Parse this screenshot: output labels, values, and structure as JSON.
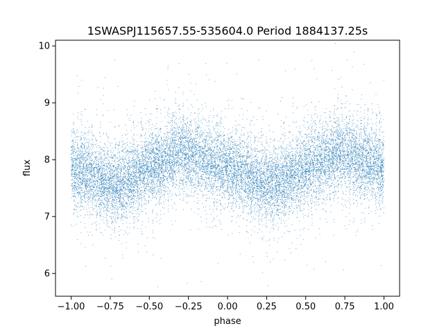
{
  "chart_data": {
    "type": "scatter",
    "title": "1SWASPJ115657.55-535604.0 Period 1884137.25s",
    "xlabel": "phase",
    "ylabel": "flux",
    "xlim": [
      -1.1,
      1.1
    ],
    "ylim": [
      5.6,
      10.1
    ],
    "xticks": [
      -1.0,
      -0.75,
      -0.5,
      -0.25,
      0.0,
      0.25,
      0.5,
      0.75,
      1.0
    ],
    "xtick_labels": [
      "−1.00",
      "−0.75",
      "−0.50",
      "−0.25",
      "0.00",
      "0.25",
      "0.50",
      "0.75",
      "1.00"
    ],
    "yticks": [
      6,
      7,
      8,
      9,
      10
    ],
    "ytick_labels": [
      "6",
      "7",
      "8",
      "9",
      "10"
    ],
    "grid": false,
    "marker_color": "#1f77b4",
    "phase_range": [
      -1.0,
      1.0
    ],
    "n_points": 16000,
    "mean_curve": [
      {
        "phase": -1.0,
        "flux": 7.85
      },
      {
        "phase": -0.9,
        "flux": 7.8
      },
      {
        "phase": -0.8,
        "flux": 7.6
      },
      {
        "phase": -0.7,
        "flux": 7.55
      },
      {
        "phase": -0.6,
        "flux": 7.7
      },
      {
        "phase": -0.5,
        "flux": 7.85
      },
      {
        "phase": -0.4,
        "flux": 7.95
      },
      {
        "phase": -0.3,
        "flux": 8.15
      },
      {
        "phase": -0.2,
        "flux": 8.05
      },
      {
        "phase": -0.1,
        "flux": 7.95
      },
      {
        "phase": 0.0,
        "flux": 7.85
      },
      {
        "phase": 0.1,
        "flux": 7.8
      },
      {
        "phase": 0.2,
        "flux": 7.6
      },
      {
        "phase": 0.3,
        "flux": 7.55
      },
      {
        "phase": 0.4,
        "flux": 7.7
      },
      {
        "phase": 0.5,
        "flux": 7.85
      },
      {
        "phase": 0.6,
        "flux": 7.95
      },
      {
        "phase": 0.7,
        "flux": 8.15
      },
      {
        "phase": 0.8,
        "flux": 8.05
      },
      {
        "phase": 0.9,
        "flux": 7.95
      },
      {
        "phase": 1.0,
        "flux": 7.85
      }
    ],
    "scatter_spread": 0.35
  }
}
